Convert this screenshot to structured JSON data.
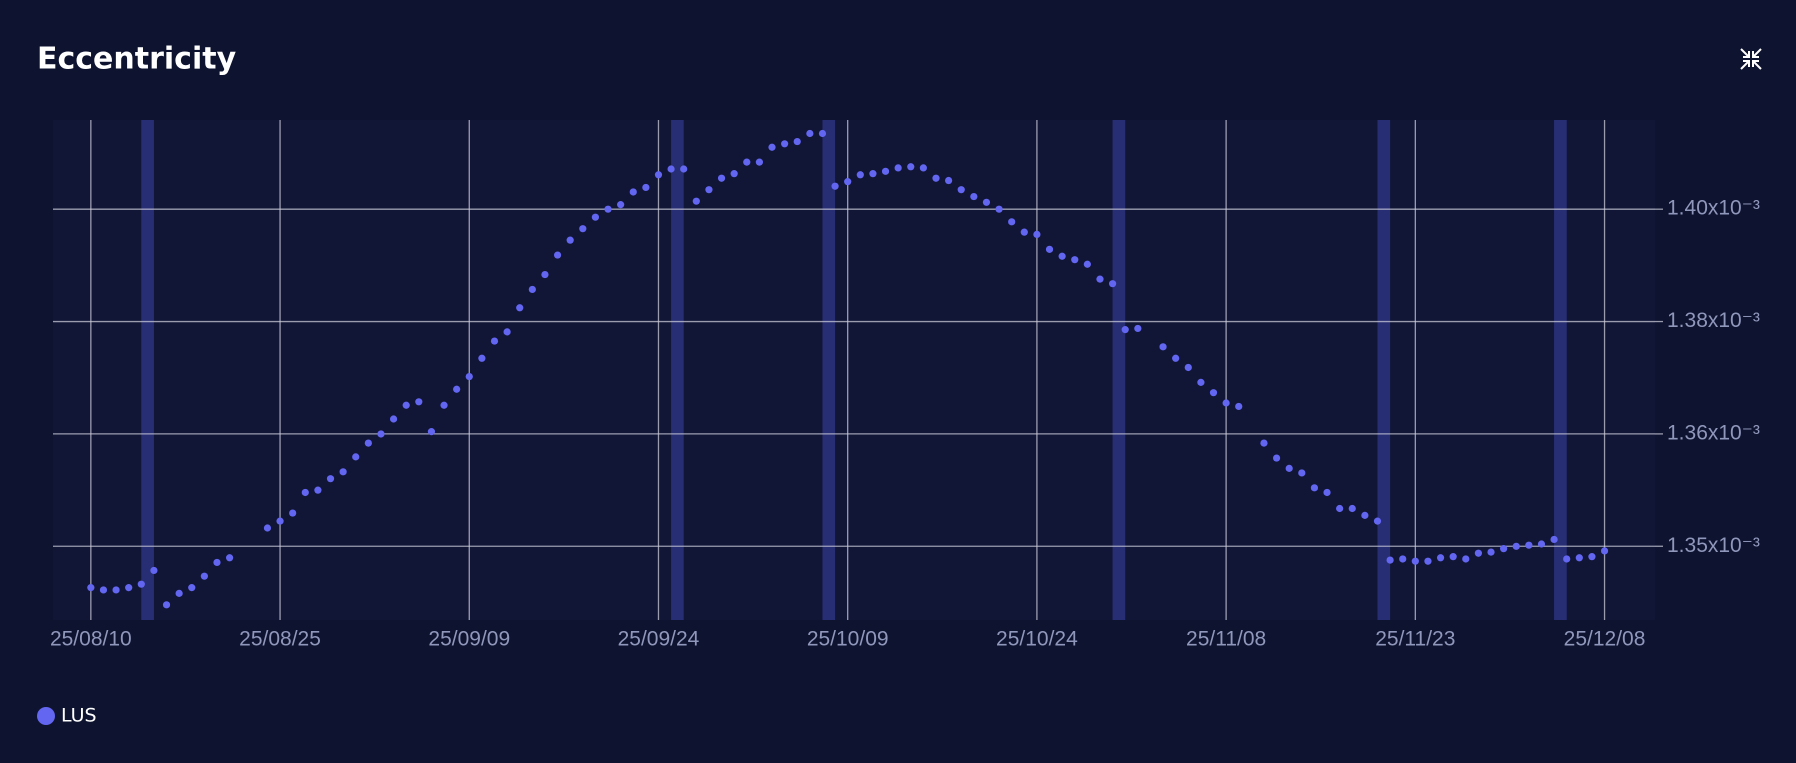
{
  "chart_data": {
    "type": "scatter",
    "title": "Eccentricity",
    "x": [
      "2025-08-10",
      "2025-08-11",
      "2025-08-12",
      "2025-08-13",
      "2025-08-14",
      "2025-08-15",
      "2025-08-16",
      "2025-08-17",
      "2025-08-18",
      "2025-08-19",
      "2025-08-20",
      "2025-08-21",
      "2025-08-24",
      "2025-08-25",
      "2025-08-26",
      "2025-08-27",
      "2025-08-28",
      "2025-08-29",
      "2025-08-30",
      "2025-08-31",
      "2025-09-01",
      "2025-09-02",
      "2025-09-03",
      "2025-09-04",
      "2025-09-05",
      "2025-09-06",
      "2025-09-07",
      "2025-09-08",
      "2025-09-09",
      "2025-09-10",
      "2025-09-11",
      "2025-09-12",
      "2025-09-13",
      "2025-09-14",
      "2025-09-15",
      "2025-09-16",
      "2025-09-17",
      "2025-09-18",
      "2025-09-19",
      "2025-09-20",
      "2025-09-21",
      "2025-09-22",
      "2025-09-23",
      "2025-09-24",
      "2025-09-25",
      "2025-09-26",
      "2025-09-27",
      "2025-09-28",
      "2025-09-29",
      "2025-09-30",
      "2025-10-01",
      "2025-10-02",
      "2025-10-03",
      "2025-10-04",
      "2025-10-05",
      "2025-10-06",
      "2025-10-07",
      "2025-10-08",
      "2025-10-09",
      "2025-10-10",
      "2025-10-11",
      "2025-10-12",
      "2025-10-13",
      "2025-10-14",
      "2025-10-15",
      "2025-10-16",
      "2025-10-17",
      "2025-10-18",
      "2025-10-19",
      "2025-10-20",
      "2025-10-21",
      "2025-10-22",
      "2025-10-23",
      "2025-10-24",
      "2025-10-25",
      "2025-10-26",
      "2025-10-27",
      "2025-10-28",
      "2025-10-29",
      "2025-10-30",
      "2025-10-31",
      "2025-11-01",
      "2025-11-03",
      "2025-11-04",
      "2025-11-05",
      "2025-11-06",
      "2025-11-07",
      "2025-11-08",
      "2025-11-09",
      "2025-11-11",
      "2025-11-12",
      "2025-11-13",
      "2025-11-14",
      "2025-11-15",
      "2025-11-16",
      "2025-11-17",
      "2025-11-18",
      "2025-11-19",
      "2025-11-20",
      "2025-11-21",
      "2025-11-22",
      "2025-11-23",
      "2025-11-24",
      "2025-11-25",
      "2025-11-26",
      "2025-11-27",
      "2025-11-28",
      "2025-11-29",
      "2025-11-30",
      "2025-12-01",
      "2025-12-02",
      "2025-12-03",
      "2025-12-04",
      "2025-12-05",
      "2025-12-06",
      "2025-12-07",
      "2025-12-08"
    ],
    "series": [
      {
        "name": "LUS",
        "color": "#6366f1",
        "values": [
          0.00134261,
          0.00134228,
          0.00134228,
          0.00134261,
          0.0013431,
          0.00134506,
          0.00134016,
          0.00134179,
          0.00134261,
          0.00134424,
          0.0013462,
          0.00134686,
          0.0013511,
          0.00135208,
          0.00135323,
          0.00135616,
          0.00135649,
          0.00135812,
          0.0013591,
          0.00136123,
          0.00136319,
          0.00136449,
          0.00136662,
          0.00136858,
          0.00136907,
          0.00136482,
          0.00136858,
          0.00137086,
          0.00137266,
          0.00137527,
          0.00137772,
          0.00137903,
          0.00138246,
          0.00138507,
          0.00138719,
          0.00138997,
          0.00139209,
          0.00139372,
          0.00139536,
          0.0013965,
          0.00139715,
          0.00139895,
          0.0013996,
          0.0014014,
          0.00140222,
          0.00140222,
          0.00139764,
          0.00139928,
          0.00140091,
          0.00140156,
          0.0014032,
          0.0014032,
          0.00140532,
          0.00140581,
          0.00140613,
          0.00140728,
          0.00140728,
          0.00139977,
          0.00140042,
          0.0014014,
          0.00140156,
          0.00140189,
          0.00140238,
          0.00140254,
          0.00140238,
          0.00140091,
          0.00140058,
          0.00139928,
          0.0013983,
          0.00139748,
          0.0013965,
          0.0013947,
          0.00139323,
          0.00139291,
          0.00139078,
          0.0013898,
          0.00138931,
          0.00138866,
          0.00138654,
          0.00138589,
          0.00137935,
          0.00137952,
          0.0013769,
          0.00137527,
          0.00137396,
          0.00137184,
          0.00137037,
          0.0013689,
          0.00136841,
          0.00136319,
          0.00136106,
          0.00135959,
          0.00135894,
          0.00135682,
          0.00135616,
          0.00135388,
          0.00135388,
          0.0013529,
          0.00135208,
          0.00134653,
          0.00134669,
          0.00134637,
          0.00134637,
          0.00134686,
          0.00134702,
          0.00134669,
          0.00134751,
          0.00134767,
          0.00134816,
          0.00134849,
          0.00134865,
          0.00134882,
          0.00134947,
          0.00134669,
          0.00134686,
          0.00134702,
          0.00134784
        ]
      }
    ],
    "xlim": [
      "2025-08-07",
      "2025-12-12"
    ],
    "xticks": [
      {
        "value": "2025-08-10",
        "label": "25/08/10"
      },
      {
        "value": "2025-08-25",
        "label": "25/08/25"
      },
      {
        "value": "2025-09-09",
        "label": "25/09/09"
      },
      {
        "value": "2025-09-24",
        "label": "25/09/24"
      },
      {
        "value": "2025-10-09",
        "label": "25/10/09"
      },
      {
        "value": "2025-10-24",
        "label": "25/10/24"
      },
      {
        "value": "2025-11-08",
        "label": "25/11/08"
      },
      {
        "value": "2025-11-23",
        "label": "25/11/23"
      },
      {
        "value": "2025-12-08",
        "label": "25/12/08"
      }
    ],
    "ylim": [
      0.001338,
      0.0014092
    ],
    "yticks": [
      {
        "value": 0.0013965,
        "label": "1.40x10⁻³"
      },
      {
        "value": 0.0013805,
        "label": "1.38x10⁻³"
      },
      {
        "value": 0.0013645,
        "label": "1.36x10⁻³"
      },
      {
        "value": 0.0013485,
        "label": "1.35x10⁻³"
      }
    ],
    "grid": true,
    "highlight_ranges": [
      [
        "2025-08-14",
        "2025-08-15"
      ],
      [
        "2025-09-25",
        "2025-09-26"
      ],
      [
        "2025-10-07",
        "2025-10-08"
      ],
      [
        "2025-10-30",
        "2025-10-31"
      ],
      [
        "2025-11-20",
        "2025-11-21"
      ],
      [
        "2025-12-04",
        "2025-12-05"
      ]
    ],
    "highlight_color": "#3a43a8",
    "legend": "bottom-left"
  }
}
